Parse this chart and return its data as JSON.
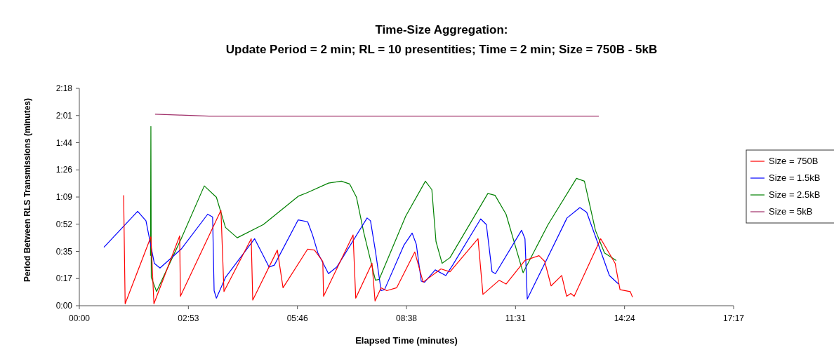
{
  "chart_data": {
    "type": "line",
    "title": "Time-Size Aggregation:",
    "subtitle": "Update Period = 2 min; RL = 10 presentities; Time = 2 min; Size = 750B - 5kB",
    "xlabel": "Elapsed Time (minutes)",
    "ylabel": "Period Between RLS Transmissions (minutes)",
    "xlim": [
      0,
      17.28
    ],
    "ylim": [
      0,
      2.304
    ],
    "xticks": [
      {
        "value": 0,
        "label": "00:00"
      },
      {
        "value": 2.88,
        "label": "02:53"
      },
      {
        "value": 5.76,
        "label": "05:46"
      },
      {
        "value": 8.64,
        "label": "08:38"
      },
      {
        "value": 11.52,
        "label": "11:31"
      },
      {
        "value": 14.4,
        "label": "14:24"
      },
      {
        "value": 17.28,
        "label": "17:17"
      }
    ],
    "yticks": [
      {
        "value": 0,
        "label": "0:00"
      },
      {
        "value": 0.288,
        "label": "0:17"
      },
      {
        "value": 0.576,
        "label": "0:35"
      },
      {
        "value": 0.864,
        "label": "0:52"
      },
      {
        "value": 1.152,
        "label": "1:09"
      },
      {
        "value": 1.44,
        "label": "1:26"
      },
      {
        "value": 1.728,
        "label": "1:44"
      },
      {
        "value": 2.016,
        "label": "2:01"
      },
      {
        "value": 2.304,
        "label": "2:18"
      }
    ],
    "grid": false,
    "legend": "right",
    "marker": "none",
    "line_style": "solid",
    "series": [
      {
        "name": "Size = 750B",
        "color": "#ff0000",
        "x": [
          1.17,
          1.21,
          1.89,
          1.97,
          2.65,
          2.67,
          3.74,
          3.82,
          4.54,
          4.58,
          5.23,
          5.38,
          6.03,
          6.21,
          6.43,
          6.45,
          7.23,
          7.3,
          7.73,
          7.81,
          7.97,
          8.12,
          8.38,
          8.86,
          9.08,
          9.55,
          9.79,
          10.53,
          10.66,
          11.09,
          11.27,
          11.77,
          12.14,
          12.29,
          12.46,
          12.74,
          12.87,
          12.98,
          13.07,
          13.77,
          14.15,
          14.28,
          14.55,
          14.61
        ],
        "values": [
          1.17,
          0.02,
          0.73,
          0.02,
          0.74,
          0.1,
          1.01,
          0.15,
          0.71,
          0.06,
          0.59,
          0.19,
          0.6,
          0.59,
          0.47,
          0.1,
          0.75,
          0.08,
          0.45,
          0.05,
          0.19,
          0.16,
          0.19,
          0.57,
          0.25,
          0.39,
          0.36,
          0.71,
          0.12,
          0.27,
          0.23,
          0.48,
          0.53,
          0.47,
          0.21,
          0.32,
          0.1,
          0.13,
          0.1,
          0.71,
          0.45,
          0.17,
          0.15,
          0.09
        ]
      },
      {
        "name": "Size = 1.5kB",
        "color": "#0000ff",
        "x": [
          0.65,
          1.54,
          1.76,
          1.98,
          2.13,
          2.69,
          3.39,
          3.52,
          3.56,
          3.62,
          3.86,
          4.63,
          4.86,
          5.01,
          5.15,
          5.78,
          6.03,
          6.16,
          6.3,
          6.58,
          6.8,
          7.6,
          7.69,
          7.82,
          7.97,
          8.06,
          8.57,
          8.79,
          8.9,
          9.03,
          9.12,
          9.4,
          9.68,
          9.86,
          10.6,
          10.75,
          10.9,
          10.99,
          11.68,
          11.77,
          11.83,
          12.27,
          12.88,
          13.22,
          13.4,
          13.68,
          14.0,
          14.24
        ],
        "values": [
          0.62,
          1.0,
          0.9,
          0.45,
          0.4,
          0.6,
          0.97,
          0.94,
          0.16,
          0.08,
          0.3,
          0.71,
          0.53,
          0.41,
          0.43,
          0.91,
          0.89,
          0.75,
          0.56,
          0.34,
          0.41,
          0.93,
          0.9,
          0.58,
          0.16,
          0.17,
          0.64,
          0.77,
          0.65,
          0.26,
          0.25,
          0.38,
          0.32,
          0.43,
          0.92,
          0.86,
          0.36,
          0.34,
          0.8,
          0.71,
          0.07,
          0.43,
          0.93,
          1.04,
          0.99,
          0.68,
          0.32,
          0.23
        ]
      },
      {
        "name": "Size = 2.5kB",
        "color": "#008000",
        "x": [
          1.88,
          1.89,
          1.9,
          2.04,
          2.69,
          3.3,
          3.62,
          3.86,
          4.17,
          4.86,
          5.78,
          6.03,
          6.58,
          6.92,
          7.14,
          7.32,
          7.51,
          7.82,
          7.92,
          8.62,
          9.14,
          9.31,
          9.42,
          9.58,
          9.79,
          10.79,
          10.98,
          11.27,
          11.59,
          11.72,
          12.38,
          13.13,
          13.34,
          13.63,
          13.87,
          14.18
        ],
        "values": [
          0.53,
          1.9,
          0.3,
          0.15,
          0.71,
          1.27,
          1.15,
          0.83,
          0.72,
          0.86,
          1.16,
          1.2,
          1.3,
          1.32,
          1.29,
          1.15,
          0.78,
          0.27,
          0.28,
          0.95,
          1.32,
          1.23,
          0.68,
          0.45,
          0.51,
          1.19,
          1.17,
          0.97,
          0.53,
          0.35,
          0.86,
          1.35,
          1.32,
          0.8,
          0.56,
          0.48
        ]
      },
      {
        "name": "Size = 5kB",
        "color": "#a0306a",
        "x": [
          2.0,
          2.69,
          3.43,
          13.72
        ],
        "values": [
          2.03,
          2.02,
          2.01,
          2.01
        ]
      }
    ]
  }
}
